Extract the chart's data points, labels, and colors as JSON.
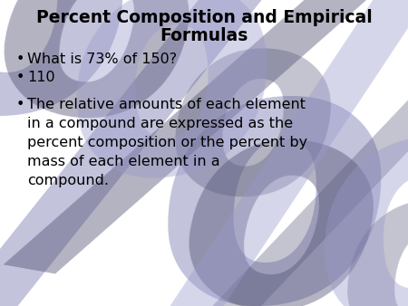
{
  "title_line1": "Percent Composition and Empirical",
  "title_line2": "Formulas",
  "bullet1": "What is 73% of 150?",
  "bullet2": "110",
  "bullet3": "The relative amounts of each element\nin a compound are expressed as the\npercent composition or the percent by\nmass of each element in a\ncompound.",
  "bg_color": "#ffffff",
  "title_color": "#000000",
  "bullet_color": "#000000",
  "title_fontsize": 13.5,
  "bullet_fontsize": 11.5,
  "wm_color1": "#8888bb",
  "wm_color2": "#555577",
  "wm_color3": "#9999cc"
}
